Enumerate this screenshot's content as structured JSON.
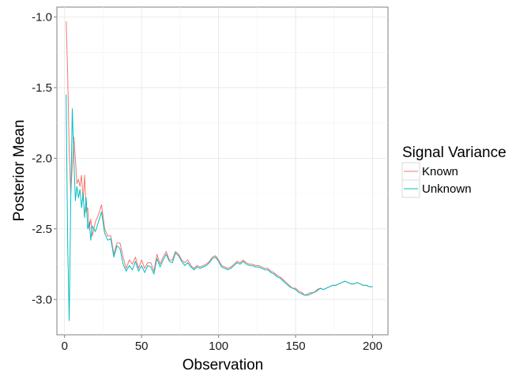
{
  "chart_data": {
    "type": "line",
    "title": "",
    "xlabel": "Observation",
    "ylabel": "Posterior Mean",
    "xlim": [
      -5,
      210
    ],
    "ylim": [
      -3.25,
      -0.93
    ],
    "x_ticks": [
      0,
      50,
      100,
      150,
      200
    ],
    "x_tick_labels": [
      "0",
      "50",
      "100",
      "150",
      "200"
    ],
    "y_ticks": [
      -1.0,
      -1.5,
      -2.0,
      -2.5,
      -3.0
    ],
    "y_tick_labels": [
      "-1.0",
      "-1.5",
      "-2.0",
      "-2.5",
      "-3.0"
    ],
    "grid": true,
    "legend": {
      "title": "Signal Variance",
      "placement": "right"
    },
    "series": [
      {
        "name": "Known",
        "color": "#F8766D",
        "points": [
          [
            1,
            -1.03
          ],
          [
            2,
            -1.4
          ],
          [
            3,
            -1.95
          ],
          [
            4,
            -2.25
          ],
          [
            5,
            -2.05
          ],
          [
            6,
            -1.85
          ],
          [
            7,
            -2.0
          ],
          [
            8,
            -2.18
          ],
          [
            9,
            -2.15
          ],
          [
            10,
            -2.2
          ],
          [
            11,
            -2.12
          ],
          [
            12,
            -2.3
          ],
          [
            13,
            -2.12
          ],
          [
            14,
            -2.38
          ],
          [
            15,
            -2.35
          ],
          [
            16,
            -2.5
          ],
          [
            17,
            -2.43
          ],
          [
            18,
            -2.55
          ],
          [
            20,
            -2.45
          ],
          [
            22,
            -2.4
          ],
          [
            24,
            -2.33
          ],
          [
            26,
            -2.5
          ],
          [
            28,
            -2.55
          ],
          [
            30,
            -2.55
          ],
          [
            32,
            -2.68
          ],
          [
            34,
            -2.6
          ],
          [
            36,
            -2.6
          ],
          [
            38,
            -2.7
          ],
          [
            40,
            -2.78
          ],
          [
            42,
            -2.72
          ],
          [
            44,
            -2.75
          ],
          [
            46,
            -2.7
          ],
          [
            48,
            -2.78
          ],
          [
            50,
            -2.72
          ],
          [
            52,
            -2.78
          ],
          [
            54,
            -2.74
          ],
          [
            56,
            -2.74
          ],
          [
            58,
            -2.8
          ],
          [
            60,
            -2.68
          ],
          [
            62,
            -2.75
          ],
          [
            64,
            -2.7
          ],
          [
            66,
            -2.66
          ],
          [
            68,
            -2.72
          ],
          [
            70,
            -2.72
          ],
          [
            72,
            -2.66
          ],
          [
            74,
            -2.68
          ],
          [
            76,
            -2.72
          ],
          [
            78,
            -2.74
          ],
          [
            80,
            -2.72
          ],
          [
            82,
            -2.76
          ],
          [
            84,
            -2.78
          ],
          [
            86,
            -2.76
          ],
          [
            88,
            -2.77
          ],
          [
            90,
            -2.76
          ],
          [
            92,
            -2.75
          ],
          [
            94,
            -2.73
          ],
          [
            96,
            -2.7
          ],
          [
            98,
            -2.69
          ],
          [
            100,
            -2.72
          ],
          [
            102,
            -2.76
          ],
          [
            104,
            -2.77
          ],
          [
            106,
            -2.78
          ],
          [
            108,
            -2.77
          ],
          [
            110,
            -2.75
          ],
          [
            112,
            -2.73
          ],
          [
            114,
            -2.74
          ],
          [
            116,
            -2.72
          ],
          [
            118,
            -2.74
          ],
          [
            120,
            -2.75
          ],
          [
            122,
            -2.75
          ],
          [
            124,
            -2.76
          ],
          [
            126,
            -2.76
          ],
          [
            128,
            -2.77
          ],
          [
            130,
            -2.78
          ],
          [
            132,
            -2.78
          ],
          [
            134,
            -2.8
          ],
          [
            136,
            -2.81
          ],
          [
            138,
            -2.83
          ],
          [
            140,
            -2.84
          ],
          [
            142,
            -2.86
          ],
          [
            144,
            -2.88
          ],
          [
            146,
            -2.9
          ],
          [
            148,
            -2.92
          ],
          [
            150,
            -2.92
          ],
          [
            152,
            -2.94
          ],
          [
            154,
            -2.95
          ],
          [
            156,
            -2.97
          ],
          [
            158,
            -2.96
          ],
          [
            160,
            -2.95
          ],
          [
            162,
            -2.95
          ],
          [
            164,
            -2.93
          ],
          [
            166,
            -2.92
          ],
          [
            168,
            -2.93
          ],
          [
            170,
            -2.92
          ],
          [
            172,
            -2.91
          ],
          [
            174,
            -2.9
          ],
          [
            176,
            -2.9
          ],
          [
            178,
            -2.89
          ],
          [
            180,
            -2.88
          ],
          [
            182,
            -2.87
          ],
          [
            184,
            -2.88
          ],
          [
            186,
            -2.89
          ],
          [
            188,
            -2.89
          ],
          [
            190,
            -2.88
          ],
          [
            192,
            -2.89
          ],
          [
            194,
            -2.9
          ],
          [
            196,
            -2.9
          ],
          [
            198,
            -2.91
          ],
          [
            200,
            -2.91
          ]
        ]
      },
      {
        "name": "Unknown",
        "color": "#00BFC4",
        "points": [
          [
            1,
            -1.55
          ],
          [
            2,
            -2.6
          ],
          [
            3,
            -3.15
          ],
          [
            4,
            -2.3
          ],
          [
            5,
            -1.65
          ],
          [
            6,
            -2.0
          ],
          [
            7,
            -2.3
          ],
          [
            8,
            -2.2
          ],
          [
            9,
            -2.28
          ],
          [
            10,
            -2.22
          ],
          [
            11,
            -2.35
          ],
          [
            12,
            -2.25
          ],
          [
            13,
            -2.42
          ],
          [
            14,
            -2.28
          ],
          [
            15,
            -2.5
          ],
          [
            16,
            -2.45
          ],
          [
            17,
            -2.58
          ],
          [
            18,
            -2.48
          ],
          [
            20,
            -2.52
          ],
          [
            22,
            -2.45
          ],
          [
            24,
            -2.38
          ],
          [
            26,
            -2.53
          ],
          [
            28,
            -2.58
          ],
          [
            30,
            -2.57
          ],
          [
            32,
            -2.7
          ],
          [
            34,
            -2.62
          ],
          [
            36,
            -2.64
          ],
          [
            38,
            -2.75
          ],
          [
            40,
            -2.8
          ],
          [
            42,
            -2.76
          ],
          [
            44,
            -2.79
          ],
          [
            46,
            -2.73
          ],
          [
            48,
            -2.8
          ],
          [
            50,
            -2.76
          ],
          [
            52,
            -2.81
          ],
          [
            54,
            -2.76
          ],
          [
            56,
            -2.77
          ],
          [
            58,
            -2.82
          ],
          [
            60,
            -2.71
          ],
          [
            62,
            -2.77
          ],
          [
            64,
            -2.72
          ],
          [
            66,
            -2.68
          ],
          [
            68,
            -2.73
          ],
          [
            70,
            -2.74
          ],
          [
            72,
            -2.67
          ],
          [
            74,
            -2.69
          ],
          [
            76,
            -2.73
          ],
          [
            78,
            -2.76
          ],
          [
            80,
            -2.74
          ],
          [
            82,
            -2.77
          ],
          [
            84,
            -2.79
          ],
          [
            86,
            -2.77
          ],
          [
            88,
            -2.78
          ],
          [
            90,
            -2.77
          ],
          [
            92,
            -2.76
          ],
          [
            94,
            -2.74
          ],
          [
            96,
            -2.71
          ],
          [
            98,
            -2.7
          ],
          [
            100,
            -2.73
          ],
          [
            102,
            -2.77
          ],
          [
            104,
            -2.78
          ],
          [
            106,
            -2.79
          ],
          [
            108,
            -2.78
          ],
          [
            110,
            -2.76
          ],
          [
            112,
            -2.74
          ],
          [
            114,
            -2.75
          ],
          [
            116,
            -2.73
          ],
          [
            118,
            -2.75
          ],
          [
            120,
            -2.76
          ],
          [
            122,
            -2.76
          ],
          [
            124,
            -2.77
          ],
          [
            126,
            -2.77
          ],
          [
            128,
            -2.78
          ],
          [
            130,
            -2.79
          ],
          [
            132,
            -2.79
          ],
          [
            134,
            -2.81
          ],
          [
            136,
            -2.82
          ],
          [
            138,
            -2.84
          ],
          [
            140,
            -2.85
          ],
          [
            142,
            -2.87
          ],
          [
            144,
            -2.89
          ],
          [
            146,
            -2.91
          ],
          [
            148,
            -2.92
          ],
          [
            150,
            -2.93
          ],
          [
            152,
            -2.95
          ],
          [
            154,
            -2.96
          ],
          [
            156,
            -2.97
          ],
          [
            158,
            -2.97
          ],
          [
            160,
            -2.96
          ],
          [
            162,
            -2.95
          ],
          [
            164,
            -2.94
          ],
          [
            166,
            -2.92
          ],
          [
            168,
            -2.93
          ],
          [
            170,
            -2.92
          ],
          [
            172,
            -2.91
          ],
          [
            174,
            -2.9
          ],
          [
            176,
            -2.9
          ],
          [
            178,
            -2.89
          ],
          [
            180,
            -2.88
          ],
          [
            182,
            -2.87
          ],
          [
            184,
            -2.88
          ],
          [
            186,
            -2.89
          ],
          [
            188,
            -2.89
          ],
          [
            190,
            -2.88
          ],
          [
            192,
            -2.89
          ],
          [
            194,
            -2.9
          ],
          [
            196,
            -2.9
          ],
          [
            198,
            -2.91
          ],
          [
            200,
            -2.91
          ]
        ]
      }
    ]
  }
}
